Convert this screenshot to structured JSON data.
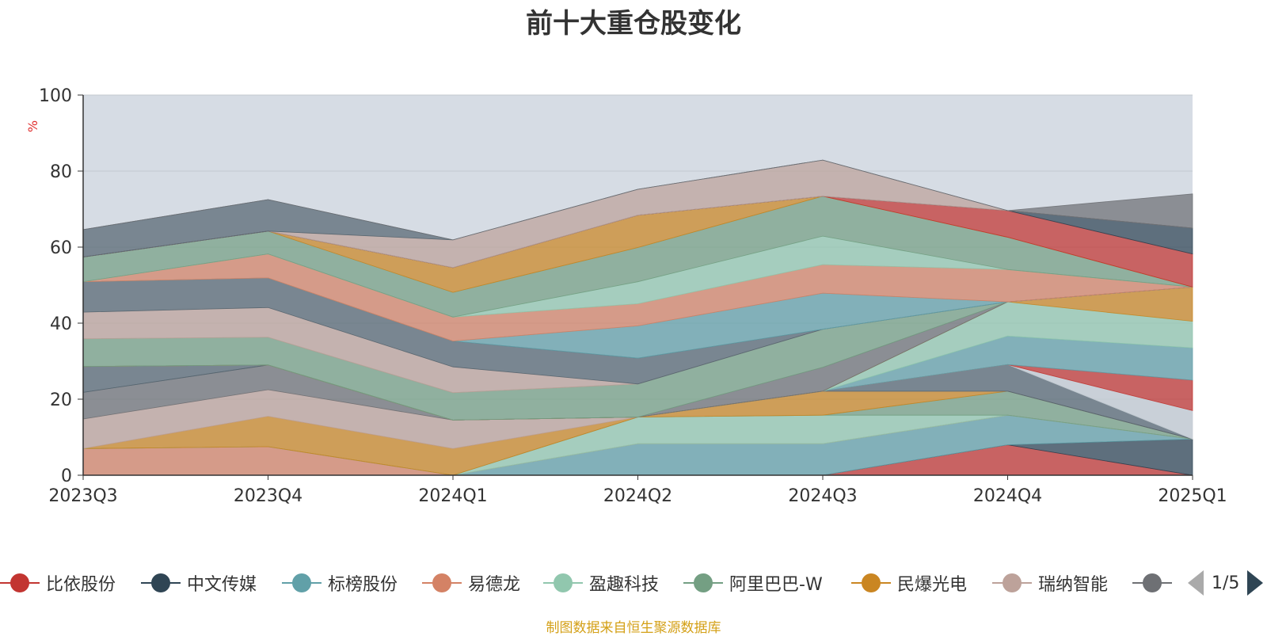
{
  "chart_data": {
    "type": "area",
    "title": "前十大重仓股变化",
    "ylabel": "%",
    "ylim": [
      0,
      100
    ],
    "yticks": [
      0,
      20,
      40,
      60,
      80,
      100
    ],
    "grid": true,
    "categories": [
      "2023Q3",
      "2023Q4",
      "2024Q1",
      "2024Q2",
      "2024Q3",
      "2024Q4",
      "2025Q1"
    ],
    "background_color": "#d6dce4",
    "series": [
      {
        "name": "比依股份",
        "color": "#c23531",
        "values": [
          0,
          0,
          0,
          0,
          0,
          8,
          0
        ]
      },
      {
        "name": "中文传媒",
        "color": "#2f4554",
        "values": [
          0,
          0,
          0,
          0,
          0,
          0,
          9.5
        ]
      },
      {
        "name": "标榜股份",
        "color": "#61a0a8",
        "values": [
          0,
          0,
          0,
          8.3,
          8.3,
          7.8,
          0
        ]
      },
      {
        "name": "易德龙",
        "color": "#d48265",
        "values": [
          7,
          7.5,
          0,
          0,
          0,
          0,
          0
        ]
      },
      {
        "name": "盈趣科技",
        "color": "#91c7ae",
        "values": [
          0,
          0,
          0,
          7,
          7.5,
          0,
          0
        ]
      },
      {
        "name": "阿里巴巴-W",
        "color": "#749f83",
        "values": [
          0,
          0,
          0,
          0,
          0,
          6.3,
          0
        ]
      },
      {
        "name": "民爆光电",
        "color": "#ca8622",
        "values": [
          0,
          8,
          7,
          0,
          6.3,
          0,
          0
        ]
      },
      {
        "name": "瑞纳智能",
        "color": "#bda29a",
        "values": [
          7.8,
          7,
          7.5,
          0,
          0,
          0,
          0
        ]
      },
      {
        "color": "#6e7074",
        "values": [
          7,
          6.5,
          0,
          0,
          0,
          0,
          0
        ]
      },
      {
        "color": "#546570",
        "values": [
          6.8,
          0,
          0,
          0,
          0,
          7,
          0
        ]
      },
      {
        "color": "#c4ccd3",
        "values": [
          0,
          0,
          0,
          0,
          0,
          0,
          7.5
        ]
      },
      {
        "color": "#c23531",
        "values": [
          0,
          0,
          0,
          0,
          0,
          0,
          8
        ]
      },
      {
        "color": "#61a0a8",
        "values": [
          0,
          0,
          0,
          0,
          0,
          7.5,
          8.5
        ]
      },
      {
        "color": "#91c7ae",
        "values": [
          0,
          0,
          0,
          0,
          0,
          9,
          7
        ]
      },
      {
        "color": "#ca8622",
        "values": [
          0,
          0,
          0,
          0,
          0,
          0,
          9
        ]
      },
      {
        "color": "#6e7074",
        "values": [
          0,
          0,
          0,
          0,
          6.3,
          0,
          0
        ]
      },
      {
        "color": "#749f83",
        "values": [
          7.3,
          7.3,
          7.2,
          8.7,
          10,
          0,
          0
        ]
      },
      {
        "color": "#bda29a",
        "values": [
          7,
          7.8,
          6.8,
          0,
          0,
          0,
          0
        ]
      },
      {
        "color": "#546570",
        "values": [
          8,
          7.8,
          6.8,
          6.8,
          0,
          0,
          0
        ]
      },
      {
        "color": "#61a0a8",
        "values": [
          0,
          0,
          0,
          8.5,
          9.5,
          0,
          0
        ]
      },
      {
        "color": "#d48265",
        "values": [
          0,
          6.3,
          6.3,
          5.8,
          7.5,
          8.5,
          0
        ]
      },
      {
        "color": "#91c7ae",
        "values": [
          0,
          0,
          0,
          5.8,
          7.5,
          0,
          0
        ]
      },
      {
        "color": "#749f83",
        "values": [
          6.5,
          6,
          6.5,
          9,
          10.5,
          8.5,
          0
        ]
      },
      {
        "color": "#ca8622",
        "values": [
          0,
          0,
          6.5,
          8.5,
          0,
          0,
          0
        ]
      },
      {
        "color": "#c23531",
        "values": [
          0,
          0,
          0,
          0,
          0,
          7,
          8.7
        ]
      },
      {
        "color": "#2f4554",
        "values": [
          0,
          0,
          0,
          0,
          0,
          0,
          6.8
        ]
      },
      {
        "color": "#bda29a",
        "values": [
          0,
          0,
          7.3,
          6.8,
          9.5,
          0,
          0
        ]
      },
      {
        "color": "#546570",
        "values": [
          7.2,
          8.3,
          0,
          0,
          0,
          0,
          0
        ]
      },
      {
        "color": "#6e7074",
        "values": [
          0,
          0,
          0,
          0,
          0,
          0,
          9
        ]
      }
    ],
    "legend": {
      "position": "bottom",
      "items": [
        {
          "name": "比依股份",
          "color": "#c23531"
        },
        {
          "name": "中文传媒",
          "color": "#2f4554"
        },
        {
          "name": "标榜股份",
          "color": "#61a0a8"
        },
        {
          "name": "易德龙",
          "color": "#d48265"
        },
        {
          "name": "盈趣科技",
          "color": "#91c7ae"
        },
        {
          "name": "阿里巴巴-W",
          "color": "#749f83"
        },
        {
          "name": "民爆光电",
          "color": "#ca8622"
        },
        {
          "name": "瑞纳智能",
          "color": "#bda29a"
        },
        {
          "name": "",
          "color": "#6e7074"
        }
      ],
      "page": "1/5"
    },
    "source_note": "制图数据来自恒生聚源数据库"
  }
}
